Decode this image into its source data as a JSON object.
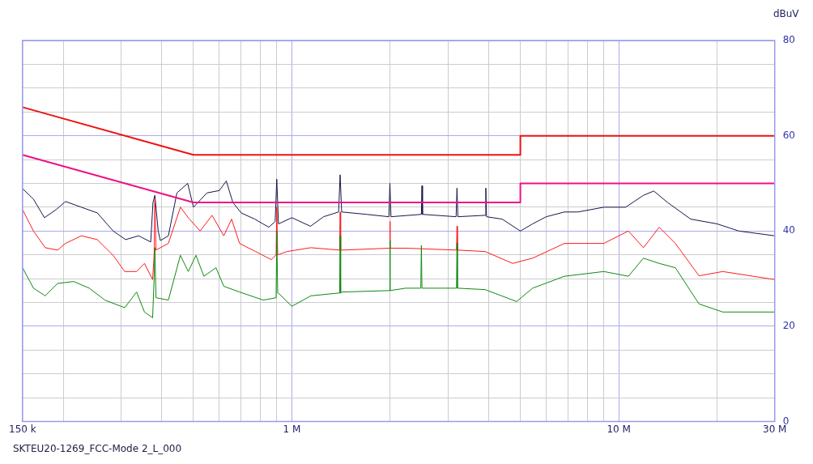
{
  "chart_data": {
    "type": "line",
    "ylabel": "dBuV",
    "annotations": [
      "SKTEU20-1269_FCC-Mode 2_L_000"
    ],
    "log": "x",
    "grid": true,
    "legend": false,
    "marker": "none",
    "line_style": "solid",
    "xlim": [
      0.15,
      30
    ],
    "xticks": [
      {
        "value": 0.15,
        "label": "150 k"
      },
      {
        "value": 0.2,
        "label": null
      },
      {
        "value": 0.3,
        "label": null
      },
      {
        "value": 0.4,
        "label": null
      },
      {
        "value": 0.5,
        "label": null
      },
      {
        "value": 0.6,
        "label": null
      },
      {
        "value": 0.7,
        "label": null
      },
      {
        "value": 0.8,
        "label": null
      },
      {
        "value": 0.9,
        "label": null
      },
      {
        "value": 1,
        "label": "1 M"
      },
      {
        "value": 2,
        "label": null
      },
      {
        "value": 3,
        "label": null
      },
      {
        "value": 4,
        "label": null
      },
      {
        "value": 5,
        "label": null
      },
      {
        "value": 6,
        "label": null
      },
      {
        "value": 7,
        "label": null
      },
      {
        "value": 8,
        "label": null
      },
      {
        "value": 9,
        "label": null
      },
      {
        "value": 10,
        "label": "10 M"
      },
      {
        "value": 20,
        "label": null
      },
      {
        "value": 30,
        "label": "30 M"
      }
    ],
    "ylim": [
      0,
      80
    ],
    "yticks": [
      0,
      {
        "value": 5,
        "label": null
      },
      {
        "value": 10,
        "label": null
      },
      {
        "value": 15,
        "label": null
      },
      20,
      {
        "value": 25,
        "label": null
      },
      {
        "value": 30,
        "label": null
      },
      {
        "value": 35,
        "label": null
      },
      40,
      {
        "value": 45,
        "label": null
      },
      {
        "value": 50,
        "label": null
      },
      {
        "value": 55,
        "label": null
      },
      60,
      {
        "value": 65,
        "label": null
      },
      {
        "value": 70,
        "label": null
      },
      {
        "value": 75,
        "label": null
      },
      80
    ],
    "series": [
      {
        "type": "line",
        "color": "#16164a",
        "x": [
          0.15,
          0.162,
          0.175,
          0.19,
          0.203,
          0.227,
          0.254,
          0.284,
          0.31,
          0.34,
          0.37,
          0.376,
          0.381,
          0.39,
          0.396,
          0.419,
          0.445,
          0.48,
          0.5,
          0.55,
          0.6,
          0.63,
          0.66,
          0.7,
          0.77,
          0.85,
          0.889,
          0.899,
          0.91,
          1.0,
          1.14,
          1.25,
          1.39,
          1.405,
          1.42,
          1.69,
          1.98,
          1.995,
          2.01,
          2.49,
          2.5,
          2.51,
          3.18,
          3.2,
          3.22,
          3.9,
          3.92,
          3.94,
          4.4,
          5.0,
          5.45,
          6.0,
          6.82,
          7.5,
          9.0,
          10.5,
          11.9,
          12.8,
          14.1,
          16.6,
          20,
          23.3,
          30
        ],
        "values": [
          48.9,
          46.7,
          42.8,
          44.5,
          46.2,
          45,
          43.8,
          40,
          38.2,
          39,
          37.7,
          46,
          47.5,
          40,
          38,
          39,
          48,
          50,
          45,
          48,
          48.5,
          50.5,
          46,
          43.8,
          42.5,
          40.8,
          42,
          50.9,
          41.5,
          42.8,
          41,
          43,
          44,
          51.8,
          44,
          43.5,
          43,
          50,
          43,
          43.5,
          49.5,
          43.5,
          43,
          49,
          43,
          43.3,
          49,
          43,
          42.5,
          40,
          41.5,
          43,
          44,
          44,
          45,
          45,
          47.5,
          48.4,
          46,
          42.5,
          41.5,
          40,
          39
        ]
      },
      {
        "type": "line",
        "color": "#ff1a1a",
        "x": [
          0.15,
          0.162,
          0.176,
          0.192,
          0.203,
          0.227,
          0.254,
          0.284,
          0.308,
          0.335,
          0.354,
          0.375,
          0.379,
          0.381,
          0.384,
          0.419,
          0.456,
          0.482,
          0.524,
          0.57,
          0.619,
          0.654,
          0.692,
          0.774,
          0.865,
          0.895,
          0.899,
          0.905,
          0.967,
          1.143,
          1.4,
          1.405,
          1.41,
          1.428,
          1.99,
          1.995,
          2.0,
          2.23,
          3.19,
          3.2,
          3.21,
          3.9,
          4.74,
          5.45,
          6.82,
          9.0,
          10.7,
          11.9,
          13.3,
          14.9,
          17.6,
          20.8,
          30
        ],
        "values": [
          44.5,
          40,
          36.5,
          36,
          37.4,
          39,
          38.2,
          34.9,
          31.5,
          31.5,
          33.2,
          29.8,
          35,
          46.7,
          36,
          37.4,
          45,
          42.8,
          40,
          43.3,
          39,
          42.5,
          37.4,
          35.7,
          34,
          35,
          45,
          35,
          35.7,
          36.5,
          36,
          44,
          36,
          36,
          36.4,
          42,
          36.4,
          36.4,
          36,
          41,
          36,
          35.7,
          33.2,
          34.3,
          37.4,
          37.4,
          40,
          36.5,
          40.8,
          37.4,
          30.6,
          31.5,
          29.8
        ]
      },
      {
        "type": "line",
        "color": "#118811",
        "x": [
          0.15,
          0.162,
          0.176,
          0.192,
          0.215,
          0.24,
          0.268,
          0.308,
          0.335,
          0.354,
          0.375,
          0.379,
          0.381,
          0.384,
          0.419,
          0.456,
          0.482,
          0.509,
          0.538,
          0.586,
          0.619,
          0.692,
          0.818,
          0.895,
          0.899,
          0.905,
          0.915,
          1.0,
          1.143,
          1.4,
          1.405,
          1.41,
          1.428,
          1.99,
          1.995,
          2.0,
          2.23,
          2.48,
          2.49,
          2.5,
          3.19,
          3.2,
          3.21,
          3.9,
          4.87,
          5.45,
          6.82,
          9.0,
          10.7,
          11.9,
          13.3,
          14.9,
          17.6,
          20.8,
          30
        ],
        "values": [
          32.3,
          28,
          26.4,
          29,
          29.4,
          28,
          25.5,
          23.9,
          27.2,
          23,
          21.8,
          30,
          36.5,
          26,
          25.5,
          34.9,
          31.5,
          34.9,
          30.5,
          32.3,
          28.4,
          27.2,
          25.5,
          26,
          40,
          27,
          26.8,
          24.2,
          26.4,
          27,
          39,
          27,
          27.2,
          27.5,
          38,
          27.5,
          28,
          28,
          37,
          28,
          28,
          37.5,
          28,
          27.7,
          25.2,
          28,
          30.5,
          31.5,
          30.5,
          34.3,
          33.2,
          32.3,
          24.7,
          23,
          23
        ]
      },
      {
        "type": "line",
        "color": "#ee1111",
        "x": [
          0.15,
          0.5,
          5,
          5,
          30
        ],
        "values": [
          66,
          56,
          56,
          60,
          60
        ]
      },
      {
        "type": "line",
        "color": "#ee1188",
        "x": [
          0.15,
          0.5,
          5,
          5,
          30
        ],
        "values": [
          56,
          46,
          46,
          50,
          50
        ]
      }
    ]
  }
}
